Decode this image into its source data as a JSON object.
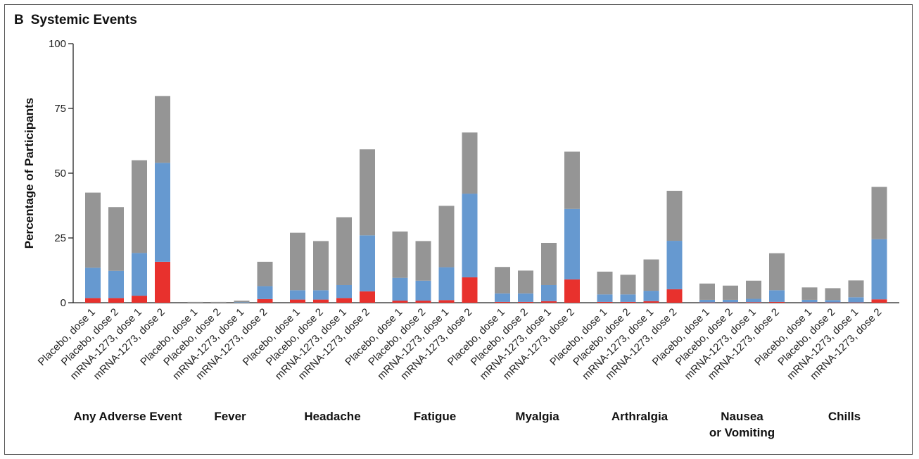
{
  "panel": {
    "letter": "B",
    "title": "Systemic Events"
  },
  "chart_data": {
    "type": "bar",
    "stacked": true,
    "ylabel": "Percentage of Participants",
    "ylim": [
      0,
      100
    ],
    "yticks": [
      0,
      25,
      50,
      75,
      100
    ],
    "bar_labels": [
      "Placebo, dose 1",
      "Placebo, dose 2",
      "mRNA-1273, dose 1",
      "mRNA-1273, dose 2"
    ],
    "colors": {
      "grade3": "#e8312d",
      "grade2": "#6699d0",
      "grade1": "#959595"
    },
    "groups": [
      {
        "label": "Any Adverse Event",
        "grade3": [
          1.8,
          1.8,
          2.7,
          15.8
        ],
        "grade2": [
          11.7,
          10.5,
          16.5,
          38.2
        ],
        "grade1": [
          29.0,
          24.6,
          35.8,
          25.8
        ]
      },
      {
        "label": "Fever",
        "grade3": [
          0,
          0,
          0,
          1.4
        ],
        "grade2": [
          0,
          0,
          0.2,
          5.0
        ],
        "grade1": [
          0.3,
          0.3,
          0.6,
          9.4
        ]
      },
      {
        "label": "Headache",
        "grade3": [
          1.2,
          1.2,
          1.8,
          4.4
        ],
        "grade2": [
          3.6,
          3.6,
          5.0,
          21.6
        ],
        "grade1": [
          22.2,
          19.0,
          26.2,
          33.2
        ]
      },
      {
        "label": "Fatigue",
        "grade3": [
          0.8,
          0.8,
          1.0,
          9.8
        ],
        "grade2": [
          8.8,
          7.7,
          12.7,
          32.3
        ],
        "grade1": [
          17.9,
          15.3,
          23.7,
          23.6
        ]
      },
      {
        "label": "Myalgia",
        "grade3": [
          0.3,
          0.3,
          0.6,
          9.0
        ],
        "grade2": [
          3.3,
          3.3,
          6.2,
          27.2
        ],
        "grade1": [
          10.2,
          8.8,
          16.3,
          22.1
        ]
      },
      {
        "label": "Arthralgia",
        "grade3": [
          0.3,
          0.3,
          0.6,
          5.2
        ],
        "grade2": [
          2.9,
          2.9,
          4.0,
          18.7
        ],
        "grade1": [
          8.8,
          7.6,
          12.1,
          19.3
        ]
      },
      {
        "label": "Nausea\nor Vomiting",
        "grade3": [
          0.1,
          0.1,
          0.2,
          0.3
        ],
        "grade2": [
          1.0,
          1.0,
          1.3,
          4.5
        ],
        "grade1": [
          6.3,
          5.5,
          7.0,
          14.3
        ]
      },
      {
        "label": "Chills",
        "grade3": [
          0.1,
          0.1,
          0.1,
          1.3
        ],
        "grade2": [
          1.0,
          0.9,
          2.0,
          23.2
        ],
        "grade1": [
          4.8,
          4.6,
          6.5,
          20.2
        ]
      }
    ]
  }
}
